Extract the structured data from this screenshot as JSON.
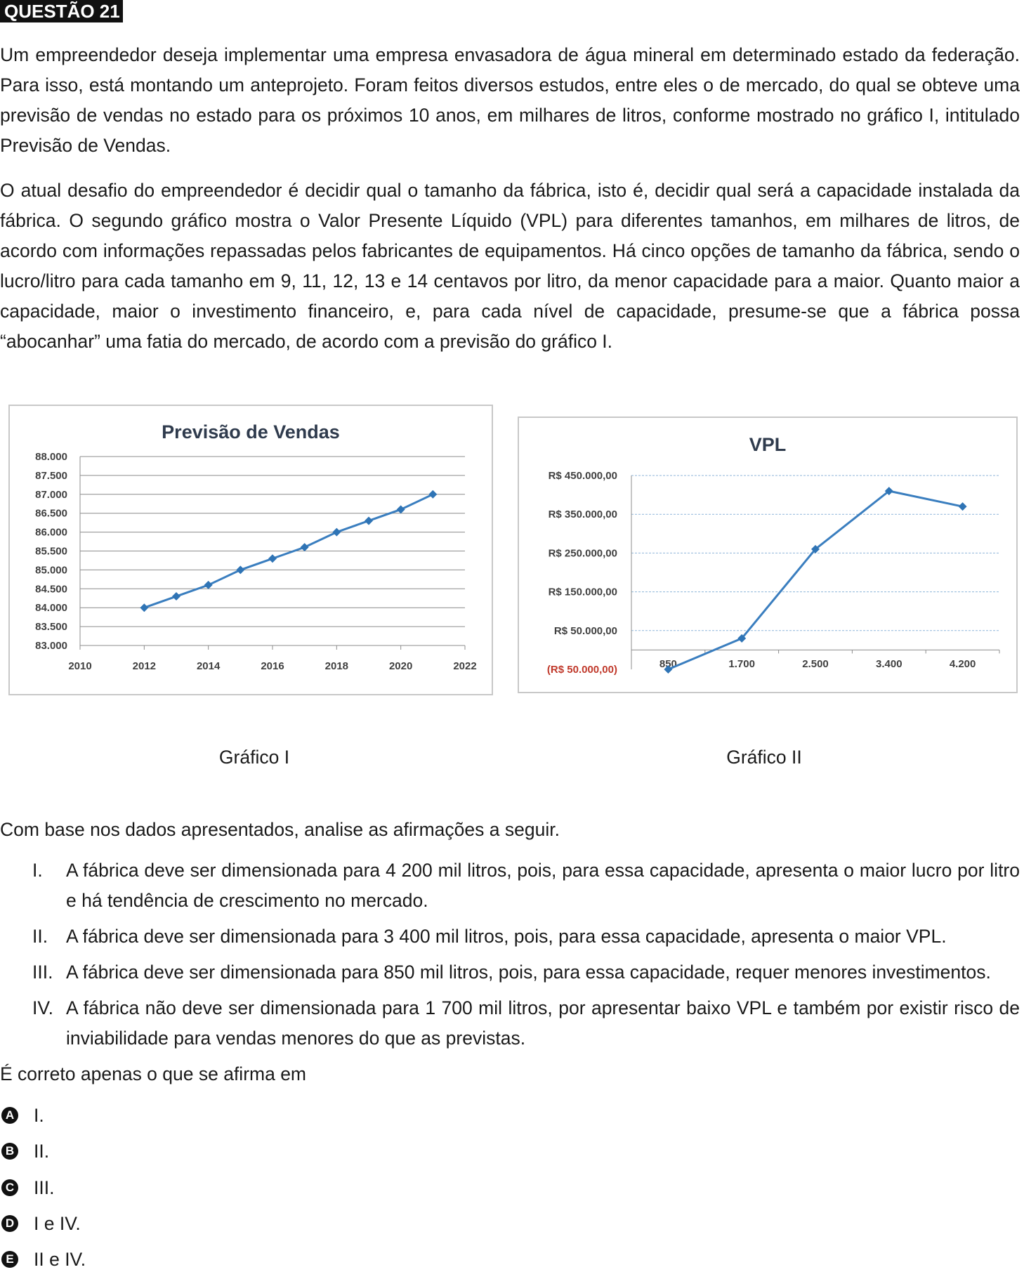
{
  "question": {
    "label": "QUESTÃO 21",
    "paragraph_1": "Um empreendedor deseja implementar uma empresa envasadora de água mineral em determinado estado da federação. Para isso, está montando um anteprojeto. Foram feitos diversos estudos, entre eles o de mercado, do qual se obteve uma previsão de vendas no estado para os próximos 10 anos, em milhares de litros, conforme mostrado no gráfico I, intitulado Previsão de Vendas.",
    "paragraph_2": "O atual desafio do empreendedor é decidir qual o tamanho da fábrica, isto é, decidir qual será a capacidade instalada da fábrica. O segundo gráfico mostra o Valor Presente Líquido (VPL) para diferentes tamanhos, em milhares de litros, de acordo com informações repassadas pelos fabricantes de equipamentos. Há cinco opções de tamanho da fábrica, sendo o lucro/litro para cada tamanho em 9, 11, 12, 13 e 14 centavos por litro, da menor capacidade para a maior. Quanto maior a capacidade, maior o investimento financeiro, e, para cada nível de capacidade, presume-se que a fábrica possa “abocanhar” uma fatia do mercado, de acordo com a previsão do gráfico I.",
    "caption_1": "Gráfico I",
    "caption_2": "Gráfico II",
    "lead": "Com base nos dados apresentados, analise as afirmações a seguir.",
    "statements": [
      {
        "num": "I.",
        "text": "A fábrica deve ser dimensionada para 4 200 mil litros, pois, para essa capacidade, apresenta o maior lucro por litro e há tendência de crescimento no mercado."
      },
      {
        "num": "II.",
        "text": "A fábrica deve ser dimensionada para 3 400 mil litros, pois, para essa capacidade, apresenta o maior VPL."
      },
      {
        "num": "III.",
        "text": "A fábrica deve ser dimensionada para 850 mil litros, pois, para essa capacidade, requer menores investimentos."
      },
      {
        "num": "IV.",
        "text": "A fábrica não deve ser dimensionada para 1 700 mil litros, por apresentar baixo VPL e também por existir risco de inviabilidade para vendas menores do que as previstas."
      }
    ],
    "prompt": "É correto apenas o que se afirma em",
    "options": [
      {
        "letter": "A",
        "text": "I."
      },
      {
        "letter": "B",
        "text": "II."
      },
      {
        "letter": "C",
        "text": "III."
      },
      {
        "letter": "D",
        "text": "I e IV."
      },
      {
        "letter": "E",
        "text": "II e IV."
      }
    ]
  },
  "colors": {
    "line": "#3a7ebf",
    "marker": "#2f74b5",
    "negative_label": "#c0392b",
    "axis_text": "#404040",
    "title_text": "#2f3b4d"
  },
  "chart_data": [
    {
      "type": "line",
      "title": "Previsão de Vendas",
      "xlabel": "",
      "ylabel": "",
      "x": [
        2012,
        2013,
        2014,
        2015,
        2016,
        2017,
        2018,
        2019,
        2020,
        2021
      ],
      "values": [
        84000,
        84300,
        84600,
        85000,
        85300,
        85600,
        86000,
        86300,
        86600,
        87000
      ],
      "xlim": [
        2010,
        2022
      ],
      "ylim": [
        83000,
        88000
      ],
      "x_ticks": [
        "2010",
        "2012",
        "2014",
        "2016",
        "2018",
        "2020",
        "2022"
      ],
      "y_ticks": [
        "88.000",
        "87.500",
        "87.000",
        "86.500",
        "86.000",
        "85.500",
        "85.000",
        "84.500",
        "84.000",
        "83.500",
        "83.000"
      ],
      "grid": true,
      "legend": "none"
    },
    {
      "type": "line",
      "title": "VPL",
      "xlabel": "",
      "ylabel": "",
      "categories": [
        "850",
        "1.700",
        "2.500",
        "3.400",
        "4.200"
      ],
      "values": [
        -50000,
        30000,
        260000,
        410000,
        370000
      ],
      "ylim": [
        -50000,
        450000
      ],
      "y_ticks": [
        "R$ 450.000,00",
        "R$ 350.000,00",
        "R$ 250.000,00",
        "R$ 150.000,00",
        "R$ 50.000,00",
        "(R$ 50.000,00)"
      ],
      "grid": true,
      "legend": "none"
    }
  ]
}
